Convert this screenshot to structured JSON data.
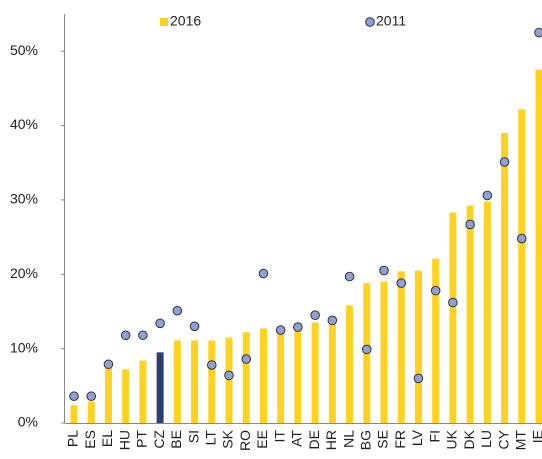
{
  "chart_data": {
    "type": "bar",
    "categories": [
      "PL",
      "ES",
      "EL",
      "HU",
      "PT",
      "CZ",
      "BE",
      "SI",
      "LT",
      "SK",
      "RO",
      "EE",
      "IT",
      "AT",
      "DE",
      "HR",
      "NL",
      "BG",
      "SE",
      "FR",
      "LV",
      "FI",
      "UK",
      "DK",
      "LU",
      "CY",
      "MT",
      "IE"
    ],
    "series": [
      {
        "name": "2016",
        "type": "bar",
        "color": "#ffd21f",
        "colors": [
          "#ffd21f",
          "#ffd21f",
          "#ffd21f",
          "#ffd21f",
          "#ffd21f",
          "#2e3e73",
          "#ffd21f",
          "#ffd21f",
          "#ffd21f",
          "#ffd21f",
          "#ffd21f",
          "#ffd21f",
          "#ffd21f",
          "#ffd21f",
          "#ffd21f",
          "#ffd21f",
          "#ffd21f",
          "#ffd21f",
          "#ffd21f",
          "#ffd21f",
          "#ffd21f",
          "#ffd21f",
          "#ffd21f",
          "#ffd21f",
          "#ffd21f",
          "#ffd21f",
          "#ffd21f",
          "#ffd21f"
        ],
        "values": [
          2.4,
          2.9,
          7.4,
          7.2,
          8.4,
          9.5,
          11.1,
          11.1,
          11.1,
          11.5,
          12.2,
          12.7,
          12.9,
          13.3,
          13.5,
          13.8,
          15.8,
          18.8,
          19.0,
          20.4,
          20.5,
          22.1,
          28.3,
          29.2,
          29.8,
          39.0,
          42.2,
          47.5
        ]
      },
      {
        "name": "2011",
        "type": "scatter",
        "color": "#8fa0d6",
        "values": [
          3.6,
          3.6,
          7.9,
          11.8,
          11.8,
          13.4,
          15.1,
          13.0,
          7.8,
          6.4,
          8.6,
          20.1,
          12.5,
          12.9,
          14.5,
          13.8,
          19.7,
          9.9,
          20.5,
          18.8,
          6.0,
          17.8,
          16.2,
          26.7,
          30.6,
          35.1,
          24.8,
          52.5
        ]
      }
    ],
    "ylim": [
      0,
      55
    ],
    "yticks": [
      {
        "value": 0,
        "label": "0%"
      },
      {
        "value": 10,
        "label": "10%"
      },
      {
        "value": 20,
        "label": "20%"
      },
      {
        "value": 30,
        "label": "30%"
      },
      {
        "value": 40,
        "label": "40%"
      },
      {
        "value": 50,
        "label": "50%"
      }
    ],
    "grid": false
  }
}
